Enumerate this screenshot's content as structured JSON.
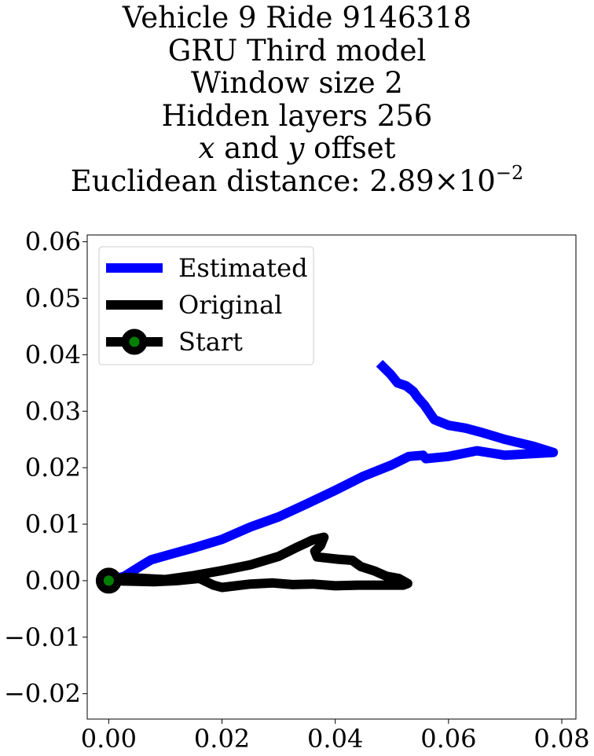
{
  "chart_data": {
    "type": "line",
    "title_lines": {
      "line1": "Vehicle 9 Ride 9146318",
      "line2": "GRU Third model",
      "line3": "Window size 2",
      "line4": "Hidden layers 256",
      "line5_var_x": "x",
      "line5_and": " and ",
      "line5_var_y": "y",
      "line5_rest": " offset",
      "line6_prefix": "Euclidean distance: 2.89",
      "line6_times": "×",
      "line6_base": "10",
      "line6_exp": "−2"
    },
    "xlim": [
      -0.0038,
      0.0825
    ],
    "ylim": [
      -0.0245,
      0.0612
    ],
    "xticks": [
      0.0,
      0.02,
      0.04,
      0.06,
      0.08
    ],
    "xtick_labels": [
      "0.00",
      "0.02",
      "0.04",
      "0.06",
      "0.08"
    ],
    "yticks": [
      -0.02,
      -0.01,
      0.0,
      0.01,
      0.02,
      0.03,
      0.04,
      0.05,
      0.06
    ],
    "ytick_labels": [
      "−0.02",
      "−0.01",
      "0.00",
      "0.01",
      "0.02",
      "0.03",
      "0.04",
      "0.05",
      "0.06"
    ],
    "grid": false,
    "legend_position": "top-left",
    "series": [
      {
        "name": "Estimated",
        "color": "#0000ff",
        "points": [
          [
            0.0,
            0.0
          ],
          [
            0.0028,
            0.0008
          ],
          [
            0.0055,
            0.0025
          ],
          [
            0.0075,
            0.0037
          ],
          [
            0.011,
            0.0047
          ],
          [
            0.015,
            0.0058
          ],
          [
            0.02,
            0.0073
          ],
          [
            0.025,
            0.0095
          ],
          [
            0.03,
            0.0113
          ],
          [
            0.035,
            0.0136
          ],
          [
            0.04,
            0.016
          ],
          [
            0.045,
            0.0185
          ],
          [
            0.05,
            0.0205
          ],
          [
            0.053,
            0.022
          ],
          [
            0.0555,
            0.0222
          ],
          [
            0.056,
            0.0216
          ],
          [
            0.06,
            0.022
          ],
          [
            0.065,
            0.023
          ],
          [
            0.07,
            0.0222
          ],
          [
            0.0748,
            0.0225
          ],
          [
            0.0785,
            0.0227
          ],
          [
            0.075,
            0.0238
          ],
          [
            0.07,
            0.025
          ],
          [
            0.066,
            0.0262
          ],
          [
            0.063,
            0.027
          ],
          [
            0.06,
            0.0275
          ],
          [
            0.0575,
            0.0285
          ],
          [
            0.0558,
            0.031
          ],
          [
            0.0545,
            0.0325
          ],
          [
            0.0538,
            0.0335
          ],
          [
            0.0525,
            0.0345
          ],
          [
            0.051,
            0.035
          ],
          [
            0.0498,
            0.0365
          ],
          [
            0.0488,
            0.0375
          ],
          [
            0.0478,
            0.0385
          ]
        ]
      },
      {
        "name": "Original",
        "color": "#000000",
        "points": [
          [
            0.0,
            0.0
          ],
          [
            0.003,
            0.0006
          ],
          [
            0.006,
            0.0004
          ],
          [
            0.01,
            0.0002
          ],
          [
            0.015,
            0.0009
          ],
          [
            0.02,
            0.0018
          ],
          [
            0.025,
            0.0028
          ],
          [
            0.03,
            0.0043
          ],
          [
            0.033,
            0.0058
          ],
          [
            0.036,
            0.0072
          ],
          [
            0.038,
            0.0077
          ],
          [
            0.0374,
            0.0062
          ],
          [
            0.0364,
            0.0052
          ],
          [
            0.0368,
            0.0042
          ],
          [
            0.0405,
            0.0038
          ],
          [
            0.043,
            0.0036
          ],
          [
            0.0445,
            0.0025
          ],
          [
            0.047,
            0.0017
          ],
          [
            0.049,
            0.0008
          ],
          [
            0.0512,
            0.0004
          ],
          [
            0.0528,
            -0.0005
          ],
          [
            0.052,
            -0.0008
          ],
          [
            0.048,
            -0.0008
          ],
          [
            0.044,
            -0.0008
          ],
          [
            0.04,
            -0.0009
          ],
          [
            0.036,
            -0.0006
          ],
          [
            0.0325,
            -0.0007
          ],
          [
            0.029,
            -0.0004
          ],
          [
            0.025,
            -0.0006
          ],
          [
            0.02,
            -0.0012
          ],
          [
            0.0185,
            -0.0008
          ],
          [
            0.016,
            0.0004
          ],
          [
            0.012,
            0.0
          ],
          [
            0.008,
            -0.0002
          ],
          [
            0.0,
            0.0
          ]
        ]
      }
    ],
    "start_point": {
      "name": "Start",
      "x": 0.0,
      "y": 0.0,
      "edge_color": "#000000",
      "face_color": "#008000"
    }
  }
}
